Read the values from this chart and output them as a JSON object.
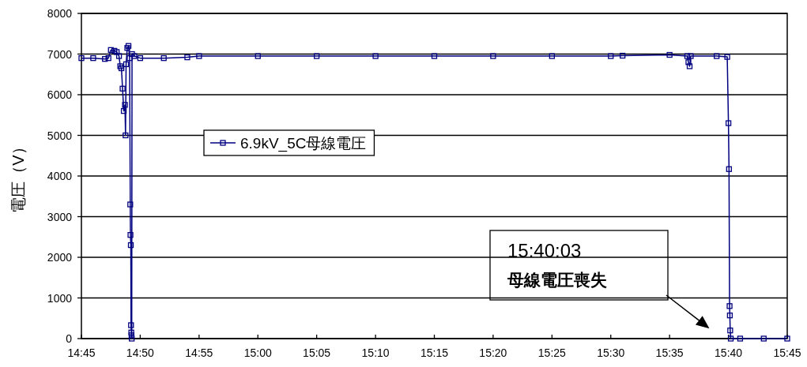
{
  "chart_data": {
    "type": "line",
    "ylabel": "電圧（V）",
    "x": [
      14.75,
      14.7667,
      14.7833,
      14.7883,
      14.7917,
      14.7967,
      14.8,
      14.8033,
      14.805,
      14.8067,
      14.8083,
      14.81,
      14.8117,
      14.8125,
      14.8133,
      14.815,
      14.8167,
      14.8183,
      14.8192,
      14.8195,
      14.82,
      14.8203,
      14.8207,
      14.821,
      14.8213,
      14.8217,
      14.825,
      14.8333,
      14.8667,
      14.9,
      14.9167,
      15.0,
      15.0833,
      15.1667,
      15.25,
      15.3333,
      15.4167,
      15.5,
      15.5167,
      15.5833,
      15.6083,
      15.61,
      15.6117,
      15.6133,
      15.65,
      15.665,
      15.6667,
      15.6675,
      15.6683,
      15.6687,
      15.6692,
      15.67,
      15.6833,
      15.7167,
      15.75
    ],
    "series": [
      {
        "name": "6.9kV_5C母線電圧",
        "color": "#000080",
        "values": [
          6900,
          6900,
          6880,
          6900,
          7100,
          7080,
          7050,
          6950,
          6700,
          6650,
          6150,
          5600,
          5750,
          5000,
          6750,
          7150,
          7200,
          6900,
          3300,
          2550,
          2300,
          330,
          150,
          80,
          0,
          7000,
          6950,
          6900,
          6900,
          6920,
          6950,
          6950,
          6950,
          6950,
          6950,
          6950,
          6950,
          6950,
          6960,
          6980,
          6950,
          6800,
          6700,
          6950,
          6950,
          6930,
          5300,
          4170,
          800,
          570,
          200,
          0,
          0,
          0,
          0
        ]
      }
    ],
    "xlim": [
      14.75,
      15.75
    ],
    "xticks": [
      {
        "value": 14.75,
        "label": "14:45"
      },
      {
        "value": 14.8333,
        "label": "14:50"
      },
      {
        "value": 14.9167,
        "label": "14:55"
      },
      {
        "value": 15.0,
        "label": "15:00"
      },
      {
        "value": 15.0833,
        "label": "15:05"
      },
      {
        "value": 15.1667,
        "label": "15:10"
      },
      {
        "value": 15.25,
        "label": "15:15"
      },
      {
        "value": 15.3333,
        "label": "15:20"
      },
      {
        "value": 15.4167,
        "label": "15:25"
      },
      {
        "value": 15.5,
        "label": "15:30"
      },
      {
        "value": 15.5833,
        "label": "15:35"
      },
      {
        "value": 15.6667,
        "label": "15:40"
      },
      {
        "value": 15.75,
        "label": "15:45"
      }
    ],
    "ylim": [
      0,
      8000
    ],
    "yticks": [
      0,
      1000,
      2000,
      3000,
      4000,
      5000,
      6000,
      7000,
      8000
    ],
    "grid": "y",
    "legend": "left",
    "marker": "square",
    "line_style": "solid",
    "annotations": [
      "15:40:03\n母線電圧喪失"
    ]
  }
}
